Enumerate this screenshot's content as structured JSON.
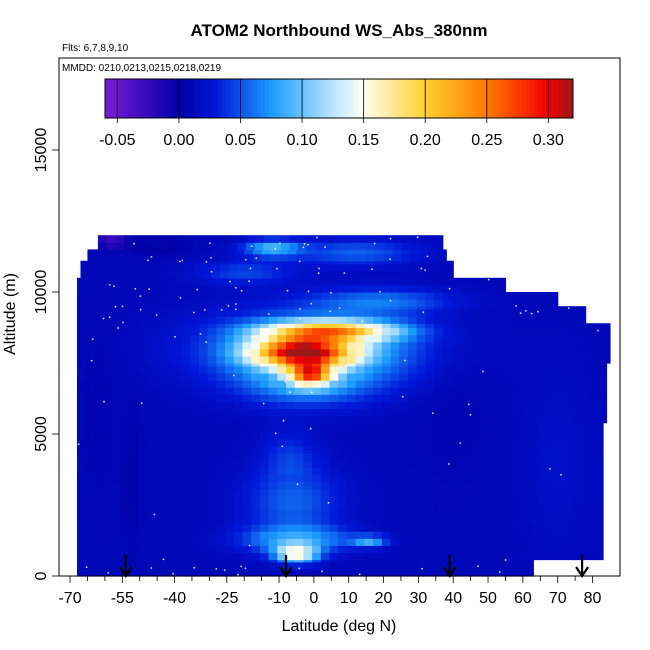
{
  "chart_data": {
    "type": "heatmap",
    "title": "ATOM2 Northbound WS_Abs_380nm",
    "subtitle_flights": "Flts: 6,7,8,9,10",
    "subtitle_dates": "MMDD: 0210,0213,0215,0218,0219",
    "xlabel": "Latitude (deg N)",
    "ylabel": "Altitude (m)",
    "xlim": [
      -70,
      83
    ],
    "ylim": [
      0,
      17500
    ],
    "x_ticks": [
      -70,
      -55,
      -40,
      -25,
      -10,
      0,
      10,
      20,
      30,
      40,
      50,
      60,
      70,
      80
    ],
    "x_minor_ticks": [
      -65,
      -60,
      -50,
      -45,
      -35,
      -30,
      -20,
      -15,
      -5,
      5,
      15,
      25,
      35,
      45,
      55,
      65,
      75
    ],
    "y_ticks": [
      0,
      5000,
      10000,
      15000
    ],
    "colorbar": {
      "min": -0.06,
      "max": 0.32,
      "ticks": [
        -0.05,
        0.0,
        0.05,
        0.1,
        0.15,
        0.2,
        0.25,
        0.3
      ],
      "tick_labels": [
        "-0.05",
        "0.00",
        "0.05",
        "0.10",
        "0.15",
        "0.20",
        "0.25",
        "0.30"
      ],
      "colors": [
        "#7b1ad6",
        "#0000a8",
        "#0018d8",
        "#1a9cff",
        "#c8ecff",
        "#fffef0",
        "#ffd030",
        "#ff7a00",
        "#f00000",
        "#9c1818"
      ],
      "stops": [
        -0.06,
        0.0,
        0.03,
        0.075,
        0.13,
        0.15,
        0.2,
        0.25,
        0.3,
        0.32
      ]
    },
    "profile_markers_lat": [
      -54,
      -8,
      39,
      77
    ],
    "background_value": 0.01,
    "extent": [
      [
        -68,
        0,
        63,
        580
      ],
      [
        -68,
        580,
        83,
        5400
      ],
      [
        -68,
        5400,
        84,
        7500
      ],
      [
        -68,
        7500,
        85,
        8900
      ],
      [
        -68,
        8900,
        78,
        9500
      ],
      [
        -68,
        9500,
        70,
        10000
      ],
      [
        -68,
        10000,
        55,
        10500
      ],
      [
        -67,
        10500,
        40,
        11100
      ],
      [
        -65,
        11100,
        38,
        11500
      ],
      [
        -62,
        11500,
        37,
        12000
      ]
    ],
    "features": [
      {
        "lat": -3,
        "alt": 7900,
        "rx": 14,
        "ry": 520,
        "value": 0.3
      },
      {
        "lat": 5,
        "alt": 8650,
        "rx": 18,
        "ry": 350,
        "value": 0.2
      },
      {
        "lat": -1,
        "alt": 7100,
        "rx": 6,
        "ry": 380,
        "value": 0.22
      },
      {
        "lat": 0,
        "alt": 8000,
        "rx": 30,
        "ry": 1300,
        "value": 0.1
      },
      {
        "lat": -2,
        "alt": 6800,
        "rx": 18,
        "ry": 800,
        "value": 0.06
      },
      {
        "lat": 20,
        "alt": 9700,
        "rx": 20,
        "ry": 450,
        "value": 0.055
      },
      {
        "lat": -5,
        "alt": 800,
        "rx": 6,
        "ry": 300,
        "value": 0.16
      },
      {
        "lat": -5,
        "alt": 1300,
        "rx": 15,
        "ry": 450,
        "value": 0.08
      },
      {
        "lat": -6,
        "alt": 2600,
        "rx": 14,
        "ry": 1300,
        "value": 0.055
      },
      {
        "lat": -7,
        "alt": 4300,
        "rx": 8,
        "ry": 900,
        "value": 0.035
      },
      {
        "lat": 16,
        "alt": 1250,
        "rx": 5,
        "ry": 200,
        "value": 0.08
      },
      {
        "lat": -12,
        "alt": 11550,
        "rx": 8,
        "ry": 300,
        "value": 0.09
      },
      {
        "lat": 12,
        "alt": 11400,
        "rx": 18,
        "ry": 450,
        "value": 0.055
      },
      {
        "lat": -20,
        "alt": 10700,
        "rx": 14,
        "ry": 400,
        "value": 0.045
      },
      {
        "lat": -58,
        "alt": 11800,
        "rx": 5,
        "ry": 250,
        "value": -0.055
      },
      {
        "lat": -44,
        "alt": 11600,
        "rx": 8,
        "ry": 400,
        "value": -0.01
      },
      {
        "lat": -52,
        "alt": 3500,
        "rx": 3,
        "ry": 2800,
        "value": -0.005
      },
      {
        "lat": -62,
        "alt": 6000,
        "rx": 5,
        "ry": 3500,
        "value": 0.0
      },
      {
        "lat": 40,
        "alt": 6500,
        "rx": 10,
        "ry": 3000,
        "value": 0.0
      },
      {
        "lat": 70,
        "alt": 4000,
        "rx": 10,
        "ry": 3500,
        "value": 0.02
      }
    ]
  }
}
